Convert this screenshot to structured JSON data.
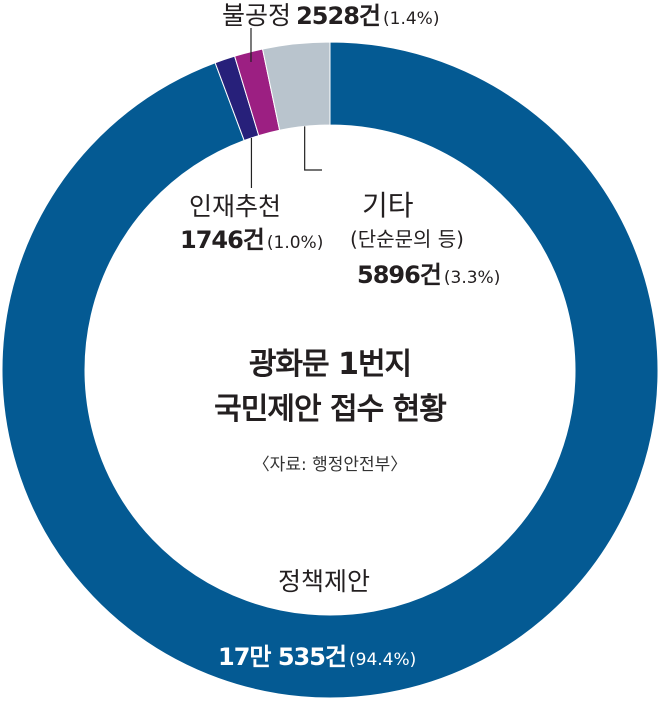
{
  "chart_data": {
    "type": "pie",
    "donut": true,
    "title_line1": "광화문 1번지",
    "title_line2": "국민제안 접수 현황",
    "source": "〈자료: 행정안전부〉",
    "slices": [
      {
        "label": "정책제안",
        "count_text": "17만 535건",
        "pct_text": "(94.4%)",
        "value": 94.4,
        "color": "#045a93"
      },
      {
        "label": "인재추천",
        "count_text": "1746건",
        "pct_text": "(1.0%)",
        "value": 1.0,
        "color": "#27207a"
      },
      {
        "label": "불공정",
        "count_text": "2528건",
        "pct_text": "(1.4%)",
        "value": 1.4,
        "color": "#9c1f82"
      },
      {
        "label": "기타",
        "sublabel": "(단순문의 등)",
        "count_text": "5896건",
        "pct_text": "(3.3%)",
        "value": 3.3,
        "color": "#b9c4cd"
      }
    ],
    "leader_color": "#222222"
  }
}
